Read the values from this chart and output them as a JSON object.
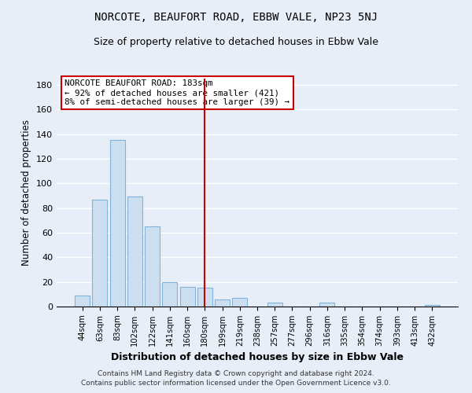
{
  "title": "NORCOTE, BEAUFORT ROAD, EBBW VALE, NP23 5NJ",
  "subtitle": "Size of property relative to detached houses in Ebbw Vale",
  "xlabel": "Distribution of detached houses by size in Ebbw Vale",
  "ylabel": "Number of detached properties",
  "bar_labels": [
    "44sqm",
    "63sqm",
    "83sqm",
    "102sqm",
    "122sqm",
    "141sqm",
    "160sqm",
    "180sqm",
    "199sqm",
    "219sqm",
    "238sqm",
    "257sqm",
    "277sqm",
    "296sqm",
    "316sqm",
    "335sqm",
    "354sqm",
    "374sqm",
    "393sqm",
    "413sqm",
    "432sqm"
  ],
  "bar_values": [
    9,
    87,
    135,
    89,
    65,
    20,
    16,
    15,
    6,
    7,
    0,
    3,
    0,
    0,
    3,
    0,
    0,
    0,
    0,
    0,
    1
  ],
  "bar_color": "#ccdff0",
  "bar_edge_color": "#7fb3d9",
  "vline_x": 7,
  "vline_color": "#cc0000",
  "ylim": [
    0,
    185
  ],
  "yticks": [
    0,
    20,
    40,
    60,
    80,
    100,
    120,
    140,
    160,
    180
  ],
  "annotation_title": "NORCOTE BEAUFORT ROAD: 183sqm",
  "annotation_line1": "← 92% of detached houses are smaller (421)",
  "annotation_line2": "8% of semi-detached houses are larger (39) →",
  "footer_line1": "Contains HM Land Registry data © Crown copyright and database right 2024.",
  "footer_line2": "Contains public sector information licensed under the Open Government Licence v3.0.",
  "background_color": "#e8eef8",
  "plot_bg_color": "#e8eef8"
}
